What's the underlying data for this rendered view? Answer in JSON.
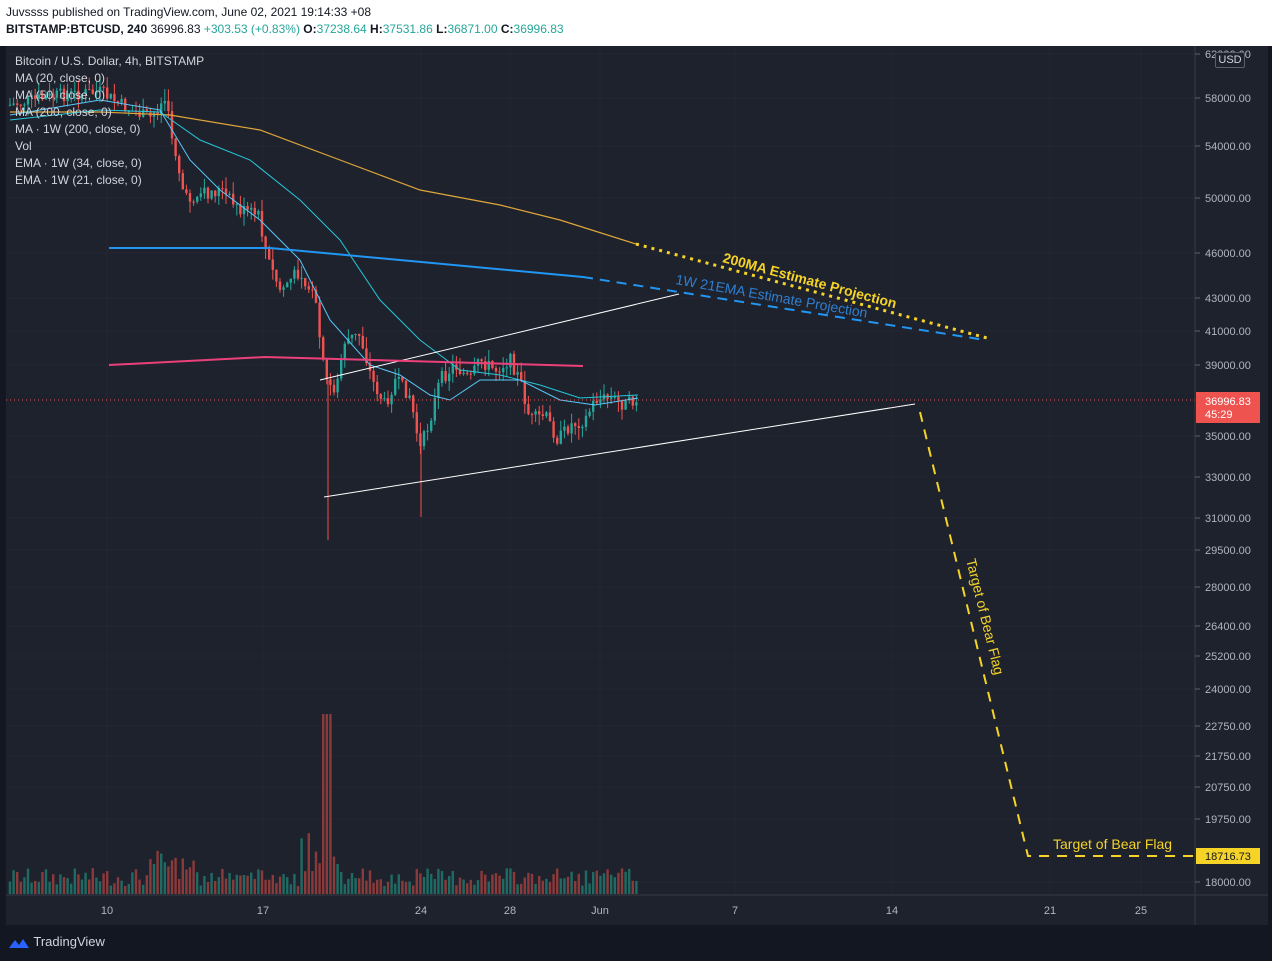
{
  "header": {
    "published": "Juvssss published on TradingView.com, June 02, 2021 19:14:33 +08",
    "symbol": "BITSTAMP:BTCUSD, 240",
    "last": "36996.83",
    "change": "+303.53 (+0.83%)",
    "o_label": "O:",
    "o_val": "37238.64",
    "h_label": "H:",
    "h_val": "37531.86",
    "l_label": "L:",
    "l_val": "36871.00",
    "c_label": "C:",
    "c_val": "36996.83"
  },
  "legend": [
    "Bitcoin / U.S. Dollar, 4h, BITSTAMP",
    "MA (20, close, 0)",
    "MA (50, close, 0)",
    "MA (200, close, 0)",
    "MA · 1W (200, close, 0)",
    "Vol",
    "EMA · 1W (34, close, 0)",
    "EMA · 1W (21, close, 0)"
  ],
  "currency": "USD",
  "brand": "TradingView",
  "chart_data": {
    "type": "candlestick",
    "price_axis_ticks": [
      62000,
      58000,
      54000,
      50000,
      46000,
      43000,
      41000,
      39000,
      35000,
      33000,
      31000,
      29500,
      28000,
      26400,
      25200,
      24000,
      22750,
      21750,
      20750,
      19750,
      18000
    ],
    "price_axis_labels": [
      "62000.00",
      "58000.00",
      "54000.00",
      "50000.00",
      "46000.00",
      "43000.00",
      "41000.00",
      "39000.00",
      "35000.00",
      "33000.00",
      "31000.00",
      "29500.00",
      "28000.00",
      "26400.00",
      "25200.00",
      "24000.00",
      "22750.00",
      "21750.00",
      "20750.00",
      "19750.00",
      "18000.00"
    ],
    "x_axis_labels": [
      "10",
      "17",
      "24",
      "28",
      "Jun",
      "7",
      "14",
      "21",
      "25"
    ],
    "last_price": {
      "value": "36996.83",
      "countdown": "45:29"
    },
    "target_price": {
      "value": "18716.73"
    },
    "annotations": [
      "200MA Estimate Projection",
      "1W 21EMA Estimate Projection",
      "Target of Bear Flag",
      "Target of Bear Flag"
    ],
    "colors": {
      "up": "#26a69a",
      "down": "#ef5350",
      "ma200": "#e0a63a",
      "ema21_1w": "#2196f3",
      "ma200_1w": "#ec407a",
      "projection": "#f5d327",
      "ma20": "#5ac8fa",
      "ma50": "#26c6da"
    }
  }
}
